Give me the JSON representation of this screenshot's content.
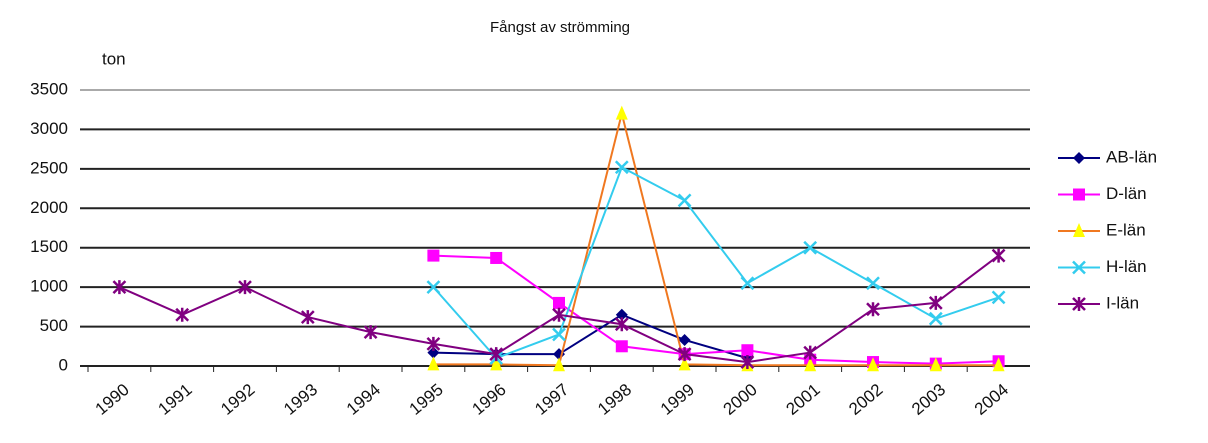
{
  "chart_data": {
    "type": "line",
    "title": "Fångst av strömming",
    "y_label": "ton",
    "categories": [
      "1990",
      "1991",
      "1992",
      "1993",
      "1994",
      "1995",
      "1996",
      "1997",
      "1998",
      "1999",
      "2000",
      "2001",
      "2002",
      "2003",
      "2004"
    ],
    "series": [
      {
        "name": "AB-län",
        "color": "#000080",
        "marker": "diamond",
        "values": [
          null,
          null,
          null,
          null,
          null,
          170,
          150,
          150,
          650,
          330,
          100,
          null,
          null,
          null,
          null
        ]
      },
      {
        "name": "D-län",
        "color": "#ff00ff",
        "marker": "square",
        "values": [
          null,
          null,
          null,
          null,
          null,
          1400,
          1370,
          800,
          250,
          150,
          200,
          80,
          50,
          30,
          60
        ]
      },
      {
        "name": "E-län",
        "color": "#f07820",
        "marker_color": "#ffff00",
        "marker": "triangle",
        "values": [
          null,
          null,
          null,
          null,
          null,
          20,
          20,
          10,
          3200,
          20,
          10,
          10,
          10,
          10,
          10
        ]
      },
      {
        "name": "H-län",
        "color": "#33ccee",
        "marker": "x",
        "values": [
          null,
          null,
          null,
          null,
          null,
          1000,
          100,
          400,
          2520,
          2100,
          1050,
          1500,
          1050,
          600,
          870
        ]
      },
      {
        "name": "I-län",
        "color": "#800080",
        "marker": "asterisk",
        "values": [
          1000,
          650,
          1000,
          620,
          430,
          280,
          150,
          650,
          530,
          150,
          50,
          170,
          720,
          800,
          1400
        ]
      }
    ],
    "ylim": [
      0,
      3500
    ],
    "yticks": [
      0,
      500,
      1000,
      1500,
      2000,
      2500,
      3000,
      3500
    ],
    "grid": true,
    "legend": "right"
  }
}
